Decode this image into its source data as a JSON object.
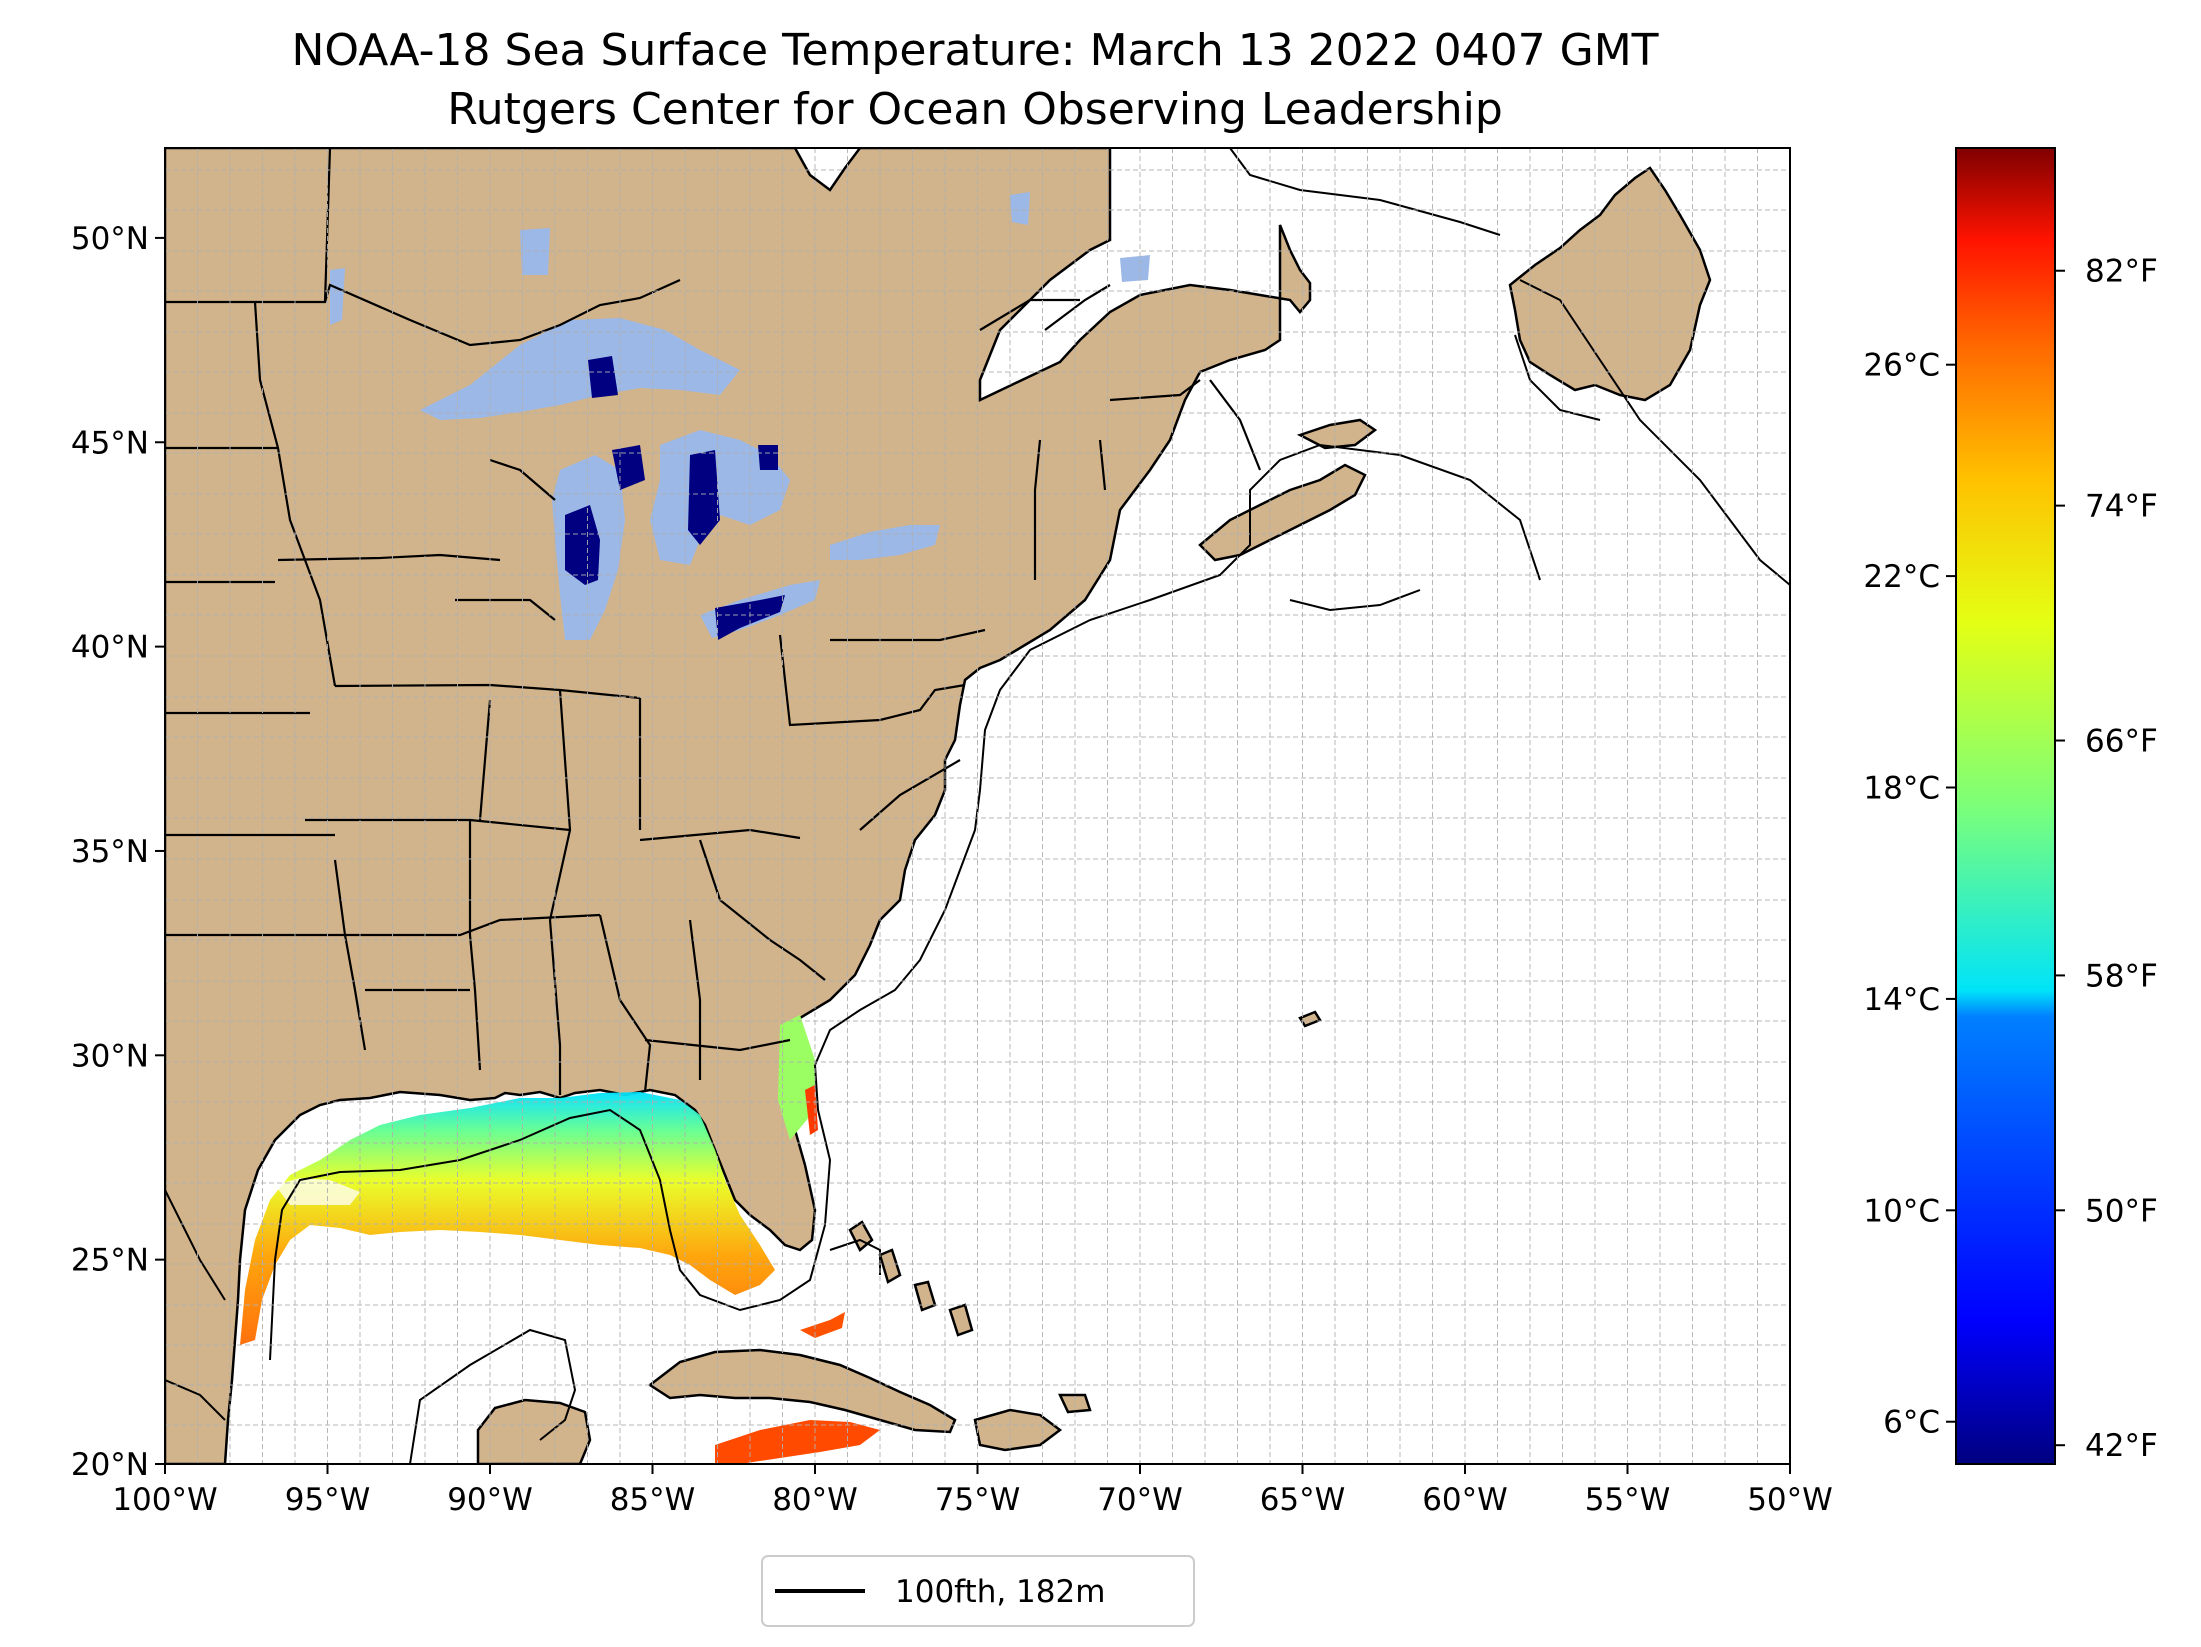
{
  "figure": {
    "title_line1": "NOAA-18 Sea Surface Temperature: March 13 2022 0407 GMT",
    "title_line2": "Rutgers Center for Ocean Observing Leadership"
  },
  "map": {
    "lon_range": [
      -100,
      -50
    ],
    "lat_range": [
      20,
      52.2
    ],
    "lon_ticks": [
      {
        "value": -100,
        "label": "100°W"
      },
      {
        "value": -95,
        "label": "95°W"
      },
      {
        "value": -90,
        "label": "90°W"
      },
      {
        "value": -85,
        "label": "85°W"
      },
      {
        "value": -80,
        "label": "80°W"
      },
      {
        "value": -75,
        "label": "75°W"
      },
      {
        "value": -70,
        "label": "70°W"
      },
      {
        "value": -65,
        "label": "65°W"
      },
      {
        "value": -60,
        "label": "60°W"
      },
      {
        "value": -55,
        "label": "55°W"
      },
      {
        "value": -50,
        "label": "50°W"
      }
    ],
    "lat_ticks": [
      {
        "value": 20,
        "label": "20°N"
      },
      {
        "value": 25,
        "label": "25°N"
      },
      {
        "value": 30,
        "label": "30°N"
      },
      {
        "value": 35,
        "label": "35°N"
      },
      {
        "value": 40,
        "label": "40°N"
      },
      {
        "value": 45,
        "label": "45°N"
      },
      {
        "value": 50,
        "label": "50°N"
      }
    ],
    "colors": {
      "land": "#d2b48c",
      "ocean": "#ffffff",
      "lake_nodata": "#9cb8e6",
      "cold": "#000080",
      "border": "#000000",
      "grid": "#b0b0b0"
    }
  },
  "colorbar": {
    "celsius_range": [
      5.2,
      30.1
    ],
    "celsius_ticks": [
      {
        "value": 6,
        "label": "6°C"
      },
      {
        "value": 10,
        "label": "10°C"
      },
      {
        "value": 14,
        "label": "14°C"
      },
      {
        "value": 18,
        "label": "18°C"
      },
      {
        "value": 22,
        "label": "22°C"
      },
      {
        "value": 26,
        "label": "26°C"
      }
    ],
    "fahrenheit_ticks": [
      {
        "value": 42,
        "label": "42°F"
      },
      {
        "value": 50,
        "label": "50°F"
      },
      {
        "value": 58,
        "label": "58°F"
      },
      {
        "value": 66,
        "label": "66°F"
      },
      {
        "value": 74,
        "label": "74°F"
      },
      {
        "value": 82,
        "label": "82°F"
      }
    ],
    "colormap": [
      "#000080",
      "#0000ff",
      "#0080ff",
      "#00e4f8",
      "#7cff79",
      "#e4ff13",
      "#ffc000",
      "#ff6800",
      "#ff1300",
      "#800000"
    ]
  },
  "legend": {
    "label": "100fth, 182m",
    "line_color": "#000000"
  }
}
